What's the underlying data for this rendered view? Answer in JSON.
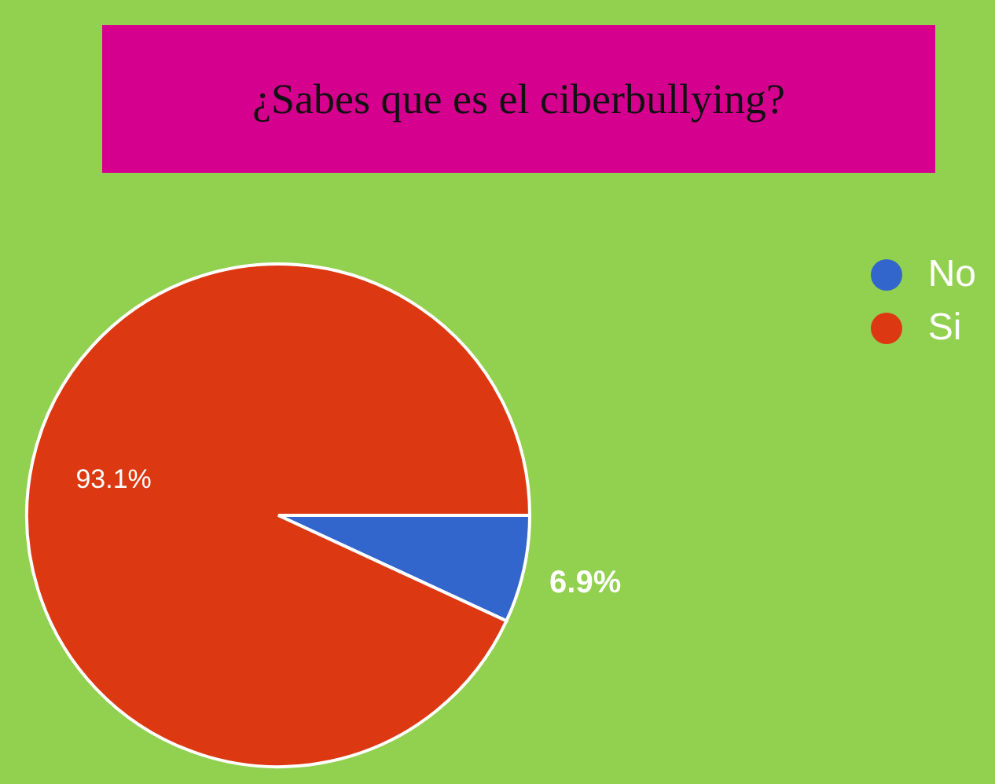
{
  "chart_data": {
    "type": "pie",
    "title": "¿Sabes que es el ciberbullying?",
    "categories": [
      "No",
      "Si"
    ],
    "values": [
      6.9,
      93.1
    ],
    "colors": [
      "#3366cc",
      "#dc3912"
    ],
    "value_labels": [
      "6.9%",
      "93.1%"
    ],
    "legend": "top right"
  }
}
